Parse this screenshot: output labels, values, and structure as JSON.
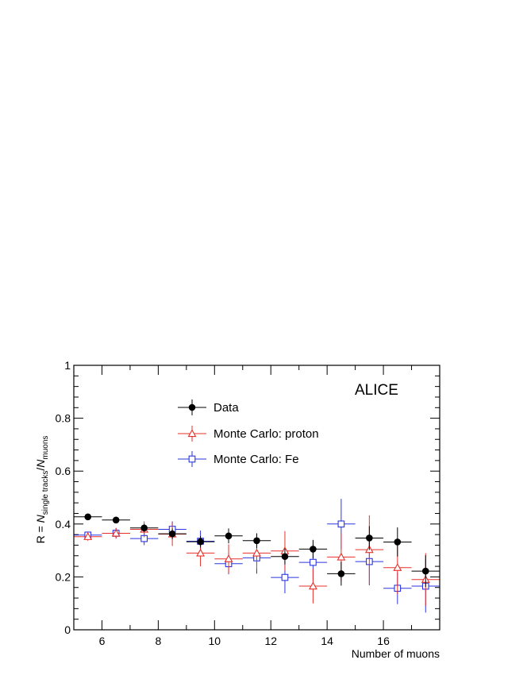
{
  "chart_data": {
    "type": "scatter",
    "annotation": "ALICE",
    "xlabel": "Number of muons",
    "ylabel": {
      "prefix": "R = ",
      "n1": "N",
      "sub1": "single tracks",
      "slash": "/",
      "n2": "N",
      "sub2": "muons"
    },
    "xlim": [
      5,
      18
    ],
    "ylim": [
      0,
      1
    ],
    "x_ticks": [
      6,
      8,
      10,
      12,
      14,
      16
    ],
    "y_ticks": [
      0,
      0.2,
      0.4,
      0.6,
      0.8,
      1
    ],
    "y_tick_labels": [
      "0",
      "0.2",
      "0.4",
      "0.6",
      "0.8",
      "1"
    ],
    "grid": false,
    "legend_position": "upper-left-center",
    "series": [
      {
        "name": "Data",
        "marker": "filled-circle",
        "color": "#000000",
        "x": [
          5.5,
          6.5,
          7.5,
          8.5,
          9.5,
          10.5,
          11.5,
          12.5,
          13.5,
          14.5,
          15.5,
          16.5,
          17.5
        ],
        "y": [
          0.427,
          0.415,
          0.385,
          0.363,
          0.333,
          0.355,
          0.337,
          0.277,
          0.305,
          0.212,
          0.347,
          0.332,
          0.222
        ],
        "yerr": [
          0.01,
          0.012,
          0.015,
          0.02,
          0.022,
          0.028,
          0.028,
          0.03,
          0.035,
          0.045,
          0.045,
          0.055,
          0.06
        ]
      },
      {
        "name": "Monte Carlo: proton",
        "marker": "open-triangle",
        "color": "#e8302a",
        "x": [
          5.5,
          6.5,
          7.5,
          8.5,
          9.5,
          10.5,
          11.5,
          12.5,
          13.5,
          14.5,
          15.5,
          16.5,
          17.5
        ],
        "y": [
          0.352,
          0.365,
          0.38,
          0.362,
          0.29,
          0.268,
          0.29,
          0.298,
          0.165,
          0.275,
          0.303,
          0.235,
          0.19
        ],
        "yerr": [
          0.015,
          0.02,
          0.03,
          0.045,
          0.05,
          0.055,
          0.06,
          0.075,
          0.065,
          0.09,
          0.13,
          0.1,
          0.1
        ]
      },
      {
        "name": "Monte Carlo: Fe",
        "marker": "open-square",
        "color": "#2b35e0",
        "x": [
          5.5,
          6.5,
          7.5,
          8.5,
          9.5,
          10.5,
          11.5,
          12.5,
          13.5,
          14.5,
          15.5,
          16.5,
          17.5
        ],
        "y": [
          0.358,
          0.365,
          0.345,
          0.38,
          0.335,
          0.25,
          0.272,
          0.198,
          0.255,
          0.4,
          0.258,
          0.157,
          0.165
        ],
        "yerr": [
          0.012,
          0.02,
          0.025,
          0.03,
          0.04,
          0.04,
          0.06,
          0.06,
          0.07,
          0.095,
          0.09,
          0.06,
          0.1
        ]
      }
    ]
  }
}
